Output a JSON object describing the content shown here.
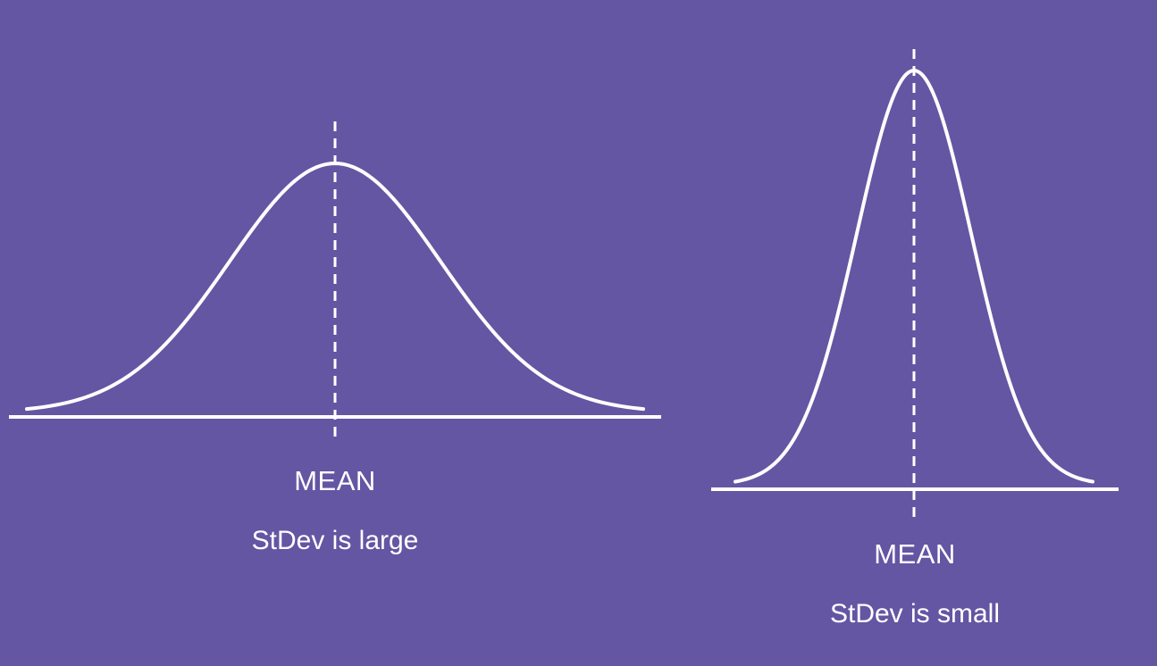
{
  "colors": {
    "background": "#6456a3",
    "line": "#ffffff"
  },
  "left_panel": {
    "mean_label": "MEAN",
    "stdev_label": "StDev is large"
  },
  "right_panel": {
    "mean_label": "MEAN",
    "stdev_label": "StDev is small"
  }
}
